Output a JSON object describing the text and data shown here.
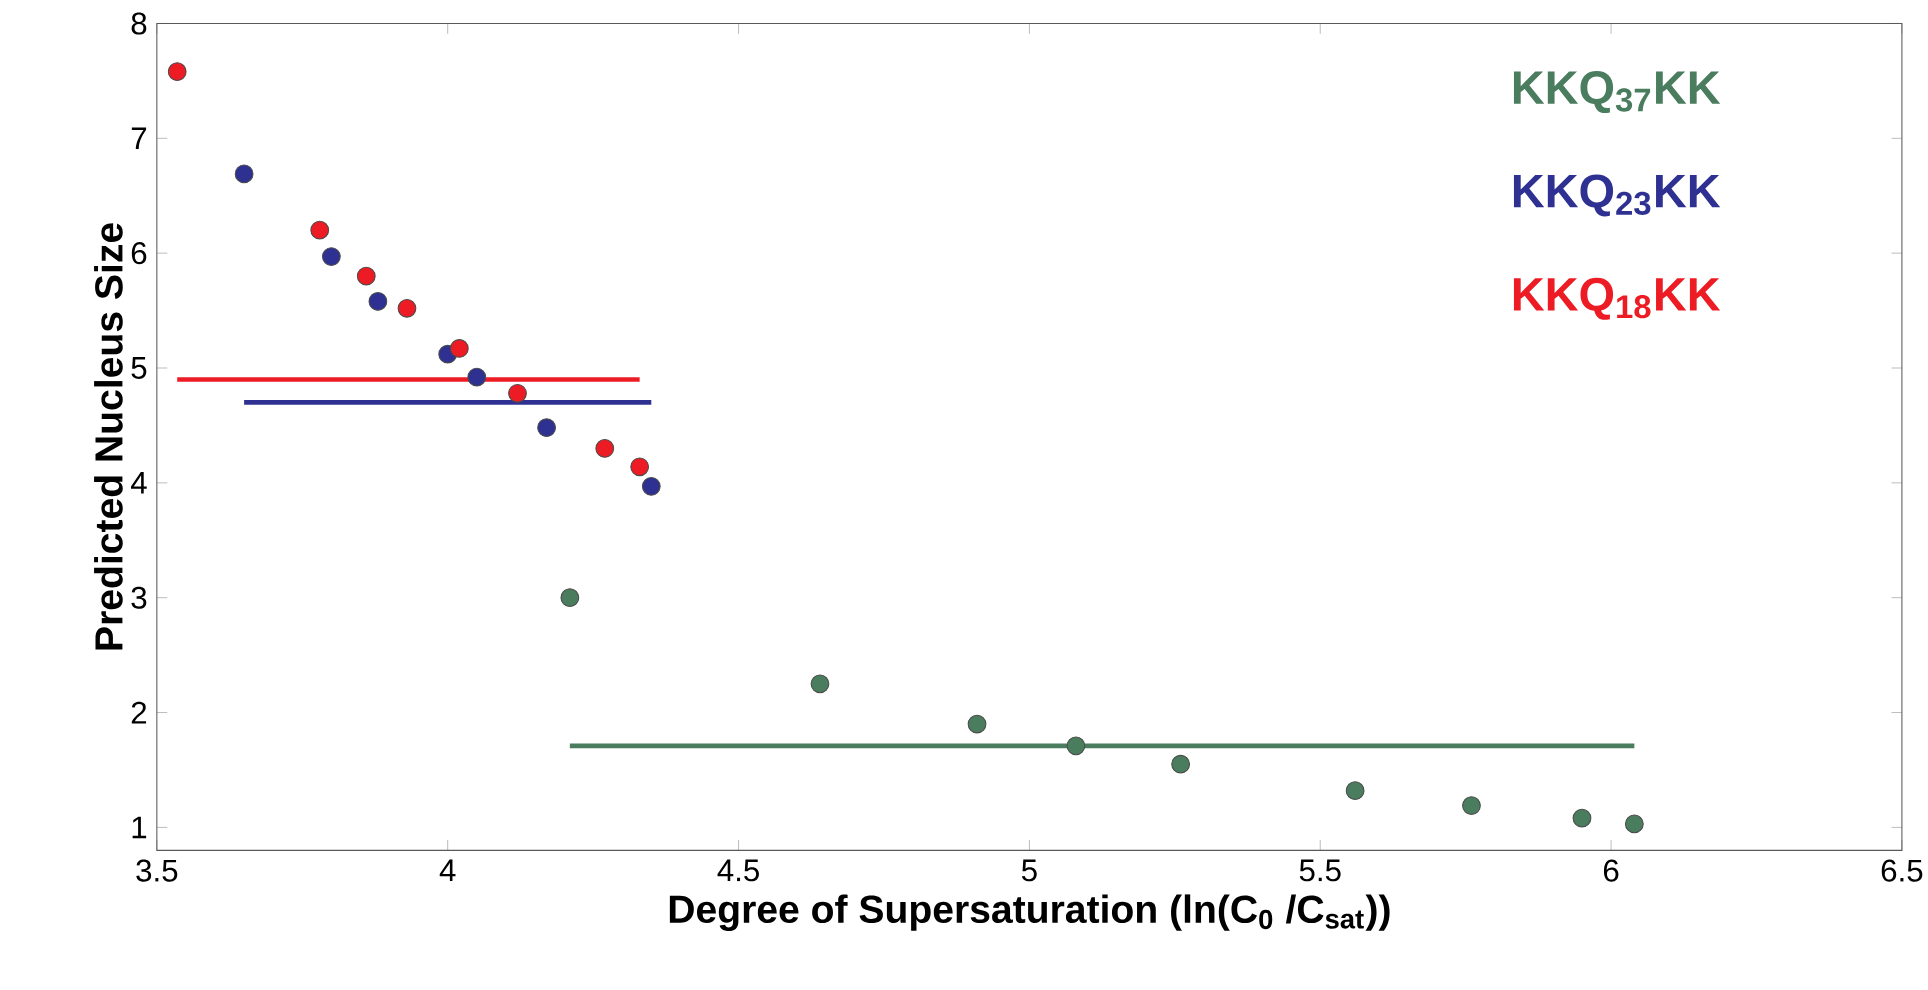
{
  "chart_data": {
    "type": "scatter",
    "xlabel": "Degree of Supersaturation (ln(C$_{0}$ /C$_{sat}$))",
    "ylabel": "Predicted Nucleus Size",
    "xlim": [
      3.5,
      6.5
    ],
    "ylim": [
      0.8,
      8
    ],
    "xticks": [
      3.5,
      4,
      4.5,
      5,
      5.5,
      6,
      6.5
    ],
    "yticks": [
      1,
      2,
      3,
      4,
      5,
      6,
      7,
      8
    ],
    "grid": false,
    "legend": "top right",
    "series": [
      {
        "name": "KKQ$_{37}$KK",
        "marker": "circle",
        "color": "#4a7c5e",
        "x": [
          4.21,
          4.64,
          4.91,
          5.08,
          5.26,
          5.56,
          5.76,
          5.95,
          6.04
        ],
        "values": [
          3.0,
          2.25,
          1.9,
          1.71,
          1.55,
          1.32,
          1.19,
          1.08,
          1.03
        ]
      },
      {
        "name": "KKQ$_{23}$KK",
        "marker": "circle",
        "color": "#2e3192",
        "x": [
          3.65,
          3.8,
          3.88,
          4.0,
          4.05,
          4.17,
          4.35
        ],
        "values": [
          6.69,
          5.97,
          5.58,
          5.12,
          4.92,
          4.48,
          3.97
        ]
      },
      {
        "name": "KKQ$_{18}$KK",
        "marker": "circle",
        "color": "#ed1c24",
        "x": [
          3.535,
          3.78,
          3.86,
          3.93,
          4.02,
          4.12,
          4.27,
          4.33
        ],
        "values": [
          7.58,
          6.2,
          5.8,
          5.52,
          5.17,
          4.78,
          4.3,
          4.14
        ]
      },
      {
        "type": "line",
        "marker": "none",
        "line_style": "solid",
        "color": "#4a7c5e",
        "x": [
          4.21,
          6.04
        ],
        "values": [
          1.71,
          1.71
        ]
      },
      {
        "type": "line",
        "marker": "none",
        "line_style": "solid",
        "color": "#2e3192",
        "x": [
          3.65,
          4.35
        ],
        "values": [
          4.7,
          4.7
        ]
      },
      {
        "type": "line",
        "marker": "none",
        "line_style": "solid",
        "color": "#ed1c24",
        "x": [
          3.535,
          4.33
        ],
        "values": [
          4.9,
          4.9
        ]
      }
    ]
  }
}
